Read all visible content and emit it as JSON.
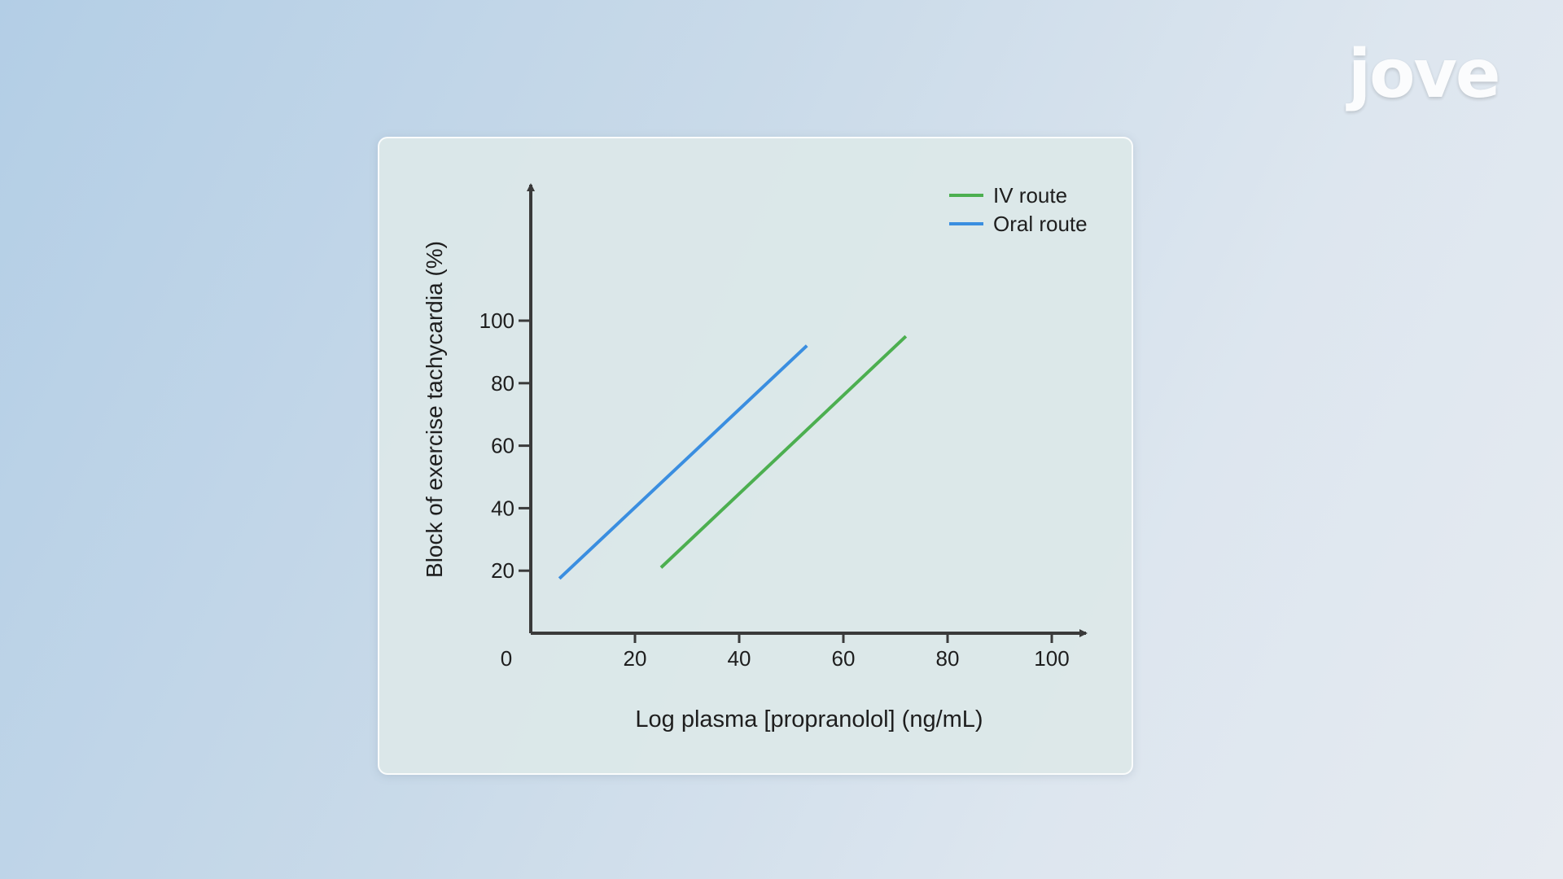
{
  "brand": {
    "logo_text": "jove"
  },
  "chart_data": {
    "type": "line",
    "title": "",
    "xlabel": "Log plasma [propranolol] (ng/mL)",
    "ylabel": "Block of exercise tachycardia (%)",
    "xlim": [
      0,
      105
    ],
    "ylim": [
      0,
      112
    ],
    "x_ticks": [
      0,
      20,
      40,
      60,
      80,
      100
    ],
    "y_ticks": [
      20,
      40,
      60,
      80,
      100
    ],
    "grid": false,
    "legend_position": "top-right",
    "series": [
      {
        "name": "IV route",
        "color": "#4caf50",
        "points": [
          [
            25,
            21
          ],
          [
            72,
            95
          ]
        ]
      },
      {
        "name": "Oral route",
        "color": "#3a8ee0",
        "points": [
          [
            5.5,
            17.5
          ],
          [
            53,
            92
          ]
        ]
      }
    ]
  }
}
